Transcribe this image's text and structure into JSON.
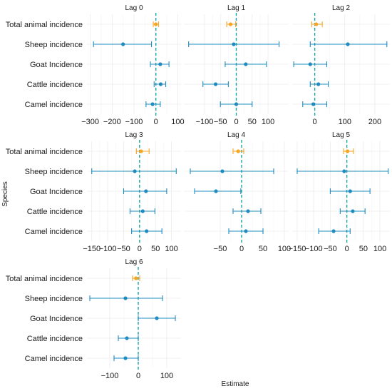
{
  "chart_data": {
    "type": "forest",
    "xlabel": "Estimate",
    "ylabel": "Species",
    "categories": [
      "Total animal incidence",
      "Sheep incidence",
      "Goat Incidence",
      "Cattle incidence",
      "Camel incidence"
    ],
    "colors": {
      "total": "#f5a623",
      "species": "#1f8bbf",
      "reference_line": "#1aa6a6",
      "grid": "#ebebeb"
    },
    "panels": [
      {
        "title": "Lag 0",
        "xlim": [
          -315,
          115
        ],
        "ticks": [
          -300,
          -200,
          -100,
          0,
          100
        ],
        "estimates": [
          {
            "category": "Total animal incidence",
            "est": 0,
            "lo": -12,
            "hi": 12
          },
          {
            "category": "Sheep incidence",
            "est": -150,
            "lo": -285,
            "hi": -20
          },
          {
            "category": "Goat Incidence",
            "est": 20,
            "lo": -25,
            "hi": 60
          },
          {
            "category": "Cattle incidence",
            "est": 22,
            "lo": -8,
            "hi": 45
          },
          {
            "category": "Camel incidence",
            "est": -15,
            "lo": -45,
            "hi": 20
          }
        ]
      },
      {
        "title": "Lag 1",
        "xlim": [
          -165,
          165
        ],
        "ticks": [
          -100,
          -50,
          0,
          50,
          100
        ],
        "estimates": [
          {
            "category": "Total animal incidence",
            "est": -18,
            "lo": -30,
            "hi": -2
          },
          {
            "category": "Sheep incidence",
            "est": -8,
            "lo": -150,
            "hi": 135
          },
          {
            "category": "Goat Incidence",
            "est": 30,
            "lo": -35,
            "hi": 95
          },
          {
            "category": "Cattle incidence",
            "est": -65,
            "lo": -105,
            "hi": -25
          },
          {
            "category": "Camel incidence",
            "est": 0,
            "lo": -50,
            "hi": 50
          }
        ]
      },
      {
        "title": "Lag 2",
        "xlim": [
          -75,
          250
        ],
        "ticks": [
          0,
          100,
          200
        ],
        "estimates": [
          {
            "category": "Total animal incidence",
            "est": 5,
            "lo": -10,
            "hi": 25
          },
          {
            "category": "Sheep incidence",
            "est": 110,
            "lo": -15,
            "hi": 240
          },
          {
            "category": "Goat Incidence",
            "est": -15,
            "lo": -70,
            "hi": 40
          },
          {
            "category": "Cattle incidence",
            "est": 12,
            "lo": -15,
            "hi": 45
          },
          {
            "category": "Camel incidence",
            "est": -5,
            "lo": -40,
            "hi": 40
          }
        ]
      },
      {
        "title": "Lag 3",
        "xlim": [
          -165,
          130
        ],
        "ticks": [
          -150,
          -100,
          -50,
          0,
          50,
          100
        ],
        "estimates": [
          {
            "category": "Total animal incidence",
            "est": 5,
            "lo": -10,
            "hi": 30
          },
          {
            "category": "Sheep incidence",
            "est": -15,
            "lo": -150,
            "hi": 115
          },
          {
            "category": "Goat Incidence",
            "est": 20,
            "lo": -50,
            "hi": 85
          },
          {
            "category": "Cattle incidence",
            "est": 10,
            "lo": -30,
            "hi": 48
          },
          {
            "category": "Camel incidence",
            "est": 22,
            "lo": -25,
            "hi": 70
          }
        ]
      },
      {
        "title": "Lag 4",
        "xlim": [
          -135,
          110
        ],
        "ticks": [
          -50,
          0,
          50,
          100
        ],
        "estimates": [
          {
            "category": "Total animal incidence",
            "est": -8,
            "lo": -20,
            "hi": 5
          },
          {
            "category": "Sheep incidence",
            "est": -45,
            "lo": -120,
            "hi": 75
          },
          {
            "category": "Goat Incidence",
            "est": -60,
            "lo": -110,
            "hi": -2
          },
          {
            "category": "Cattle incidence",
            "est": 15,
            "lo": -20,
            "hi": 45
          },
          {
            "category": "Camel incidence",
            "est": 10,
            "lo": -30,
            "hi": 50
          }
        ]
      },
      {
        "title": "Lag 5",
        "xlim": [
          -165,
          130
        ],
        "ticks": [
          -150,
          -100,
          -50,
          0,
          50,
          100
        ],
        "estimates": [
          {
            "category": "Total animal incidence",
            "est": 2,
            "lo": -10,
            "hi": 20
          },
          {
            "category": "Sheep incidence",
            "est": -8,
            "lo": -150,
            "hi": 125
          },
          {
            "category": "Goat Incidence",
            "est": 10,
            "lo": -50,
            "hi": 70
          },
          {
            "category": "Cattle incidence",
            "est": 18,
            "lo": -20,
            "hi": 55
          },
          {
            "category": "Camel incidence",
            "est": -40,
            "lo": -85,
            "hi": 10
          }
        ]
      },
      {
        "title": "Lag 6",
        "xlim": [
          -180,
          150
        ],
        "ticks": [
          -100,
          0,
          100
        ],
        "estimates": [
          {
            "category": "Total animal incidence",
            "est": -8,
            "lo": -20,
            "hi": 5
          },
          {
            "category": "Sheep incidence",
            "est": -45,
            "lo": -170,
            "hi": 85
          },
          {
            "category": "Goat Incidence",
            "est": 65,
            "lo": 0,
            "hi": 130
          },
          {
            "category": "Cattle incidence",
            "est": -40,
            "lo": -70,
            "hi": 0
          },
          {
            "category": "Camel incidence",
            "est": -45,
            "lo": -85,
            "hi": 0
          }
        ]
      }
    ]
  }
}
